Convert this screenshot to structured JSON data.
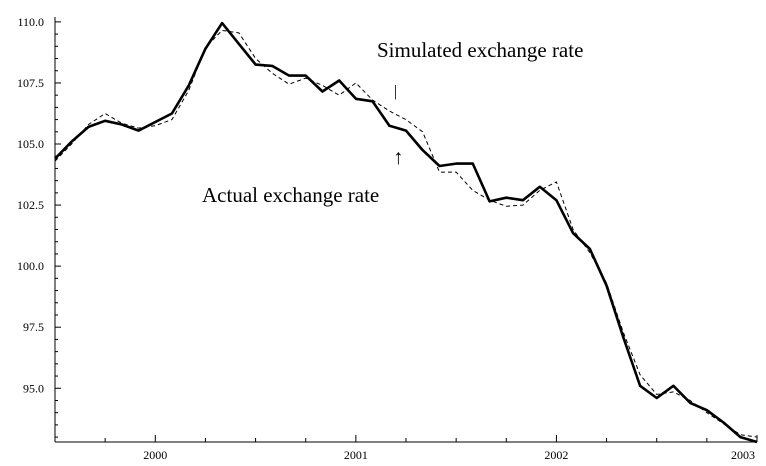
{
  "chart_data": {
    "type": "line",
    "title": "",
    "xlabel": "",
    "ylabel": "",
    "xlim": [
      1999.5,
      2003.0
    ],
    "ylim": [
      92.8,
      110.2
    ],
    "grid": false,
    "x_ticks": [
      2000,
      2001,
      2002,
      2003
    ],
    "x_tick_labels": [
      "2000",
      "2001",
      "2002",
      "2003"
    ],
    "y_ticks": [
      95.0,
      97.5,
      100.0,
      102.5,
      105.0,
      107.5,
      110.0
    ],
    "y_tick_labels": [
      "95.0",
      "97.5",
      "100.0",
      "102.5",
      "105.0",
      "107.5",
      "110.0"
    ],
    "annotations": [
      {
        "text": "Simulated exchange rate",
        "series": "simulated"
      },
      {
        "text": "Actual exchange rate",
        "series": "actual"
      }
    ],
    "annotation_markers": {
      "up_arrow": "↑",
      "bar": "|"
    },
    "series": [
      {
        "key": "actual",
        "style": "solid",
        "color": "#000000",
        "x": [
          1999.5,
          1999.583,
          1999.667,
          1999.75,
          1999.833,
          1999.917,
          2000.0,
          2000.083,
          2000.167,
          2000.25,
          2000.333,
          2000.417,
          2000.5,
          2000.583,
          2000.667,
          2000.75,
          2000.833,
          2000.917,
          2001.0,
          2001.083,
          2001.167,
          2001.25,
          2001.333,
          2001.417,
          2001.5,
          2001.583,
          2001.667,
          2001.75,
          2001.833,
          2001.917,
          2002.0,
          2002.083,
          2002.167,
          2002.25,
          2002.333,
          2002.417,
          2002.5,
          2002.583,
          2002.667,
          2002.75,
          2002.833,
          2002.917,
          2003.0
        ],
        "y": [
          104.4,
          105.1,
          105.7,
          105.95,
          105.8,
          105.55,
          105.9,
          106.25,
          107.4,
          108.9,
          109.95,
          109.1,
          108.25,
          108.2,
          107.8,
          107.8,
          107.15,
          107.6,
          106.85,
          106.75,
          105.75,
          105.55,
          104.75,
          104.1,
          104.2,
          104.2,
          102.65,
          102.8,
          102.7,
          103.25,
          102.7,
          101.35,
          100.7,
          99.2,
          97.1,
          95.1,
          94.6,
          95.1,
          94.4,
          94.1,
          93.6,
          93.0,
          92.8
        ]
      },
      {
        "key": "simulated",
        "style": "dashed",
        "color": "#000000",
        "x": [
          1999.5,
          1999.583,
          1999.667,
          1999.75,
          1999.833,
          1999.917,
          2000.0,
          2000.083,
          2000.167,
          2000.25,
          2000.333,
          2000.417,
          2000.5,
          2000.583,
          2000.667,
          2000.75,
          2000.833,
          2000.917,
          2001.0,
          2001.083,
          2001.167,
          2001.25,
          2001.333,
          2001.417,
          2001.5,
          2001.583,
          2001.667,
          2001.75,
          2001.833,
          2001.917,
          2002.0,
          2002.083,
          2002.167,
          2002.25,
          2002.333,
          2002.417,
          2002.5,
          2002.583,
          2002.667,
          2002.75,
          2002.833,
          2002.917,
          2003.0
        ],
        "y": [
          104.3,
          105.0,
          105.8,
          106.25,
          105.85,
          105.65,
          105.75,
          106.0,
          107.2,
          108.95,
          109.65,
          109.55,
          108.5,
          107.9,
          107.45,
          107.7,
          107.4,
          107.0,
          107.5,
          106.8,
          106.35,
          106.0,
          105.5,
          103.85,
          103.85,
          103.1,
          102.7,
          102.45,
          102.5,
          103.1,
          103.45,
          101.5,
          100.55,
          99.3,
          97.3,
          95.55,
          94.75,
          94.85,
          94.5,
          94.0,
          93.55,
          93.1,
          93.0
        ]
      }
    ]
  }
}
